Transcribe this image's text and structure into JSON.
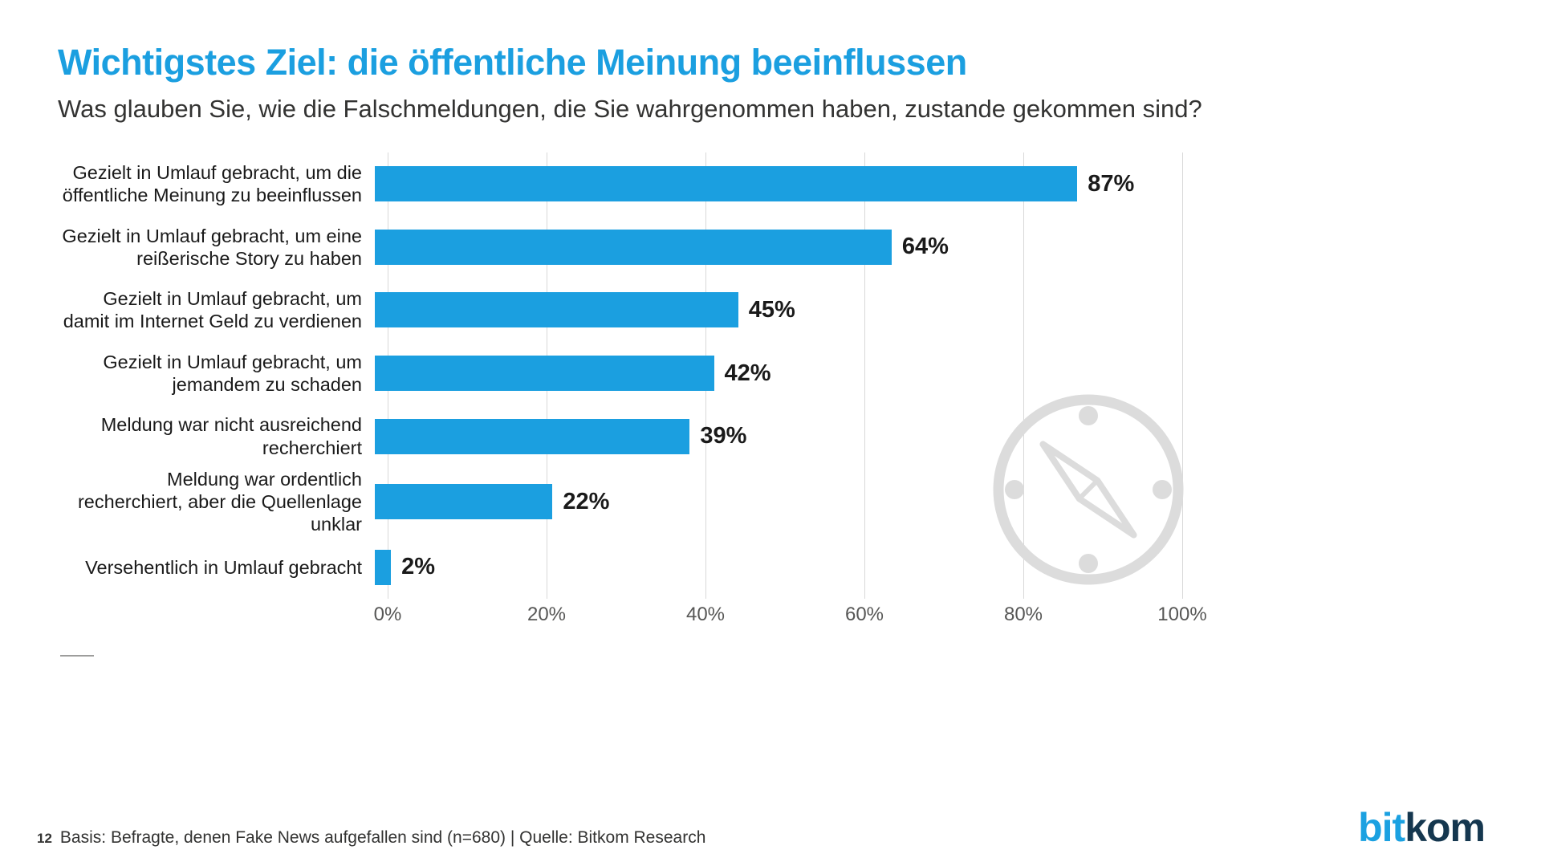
{
  "header": {
    "title": "Wichtigstes Ziel: die öffentliche Meinung beeinflussen",
    "subtitle": "Was glauben Sie, wie die Falschmeldungen, die Sie wahrgenommen haben, zustande gekommen sind?"
  },
  "chart_data": {
    "type": "bar",
    "orientation": "horizontal",
    "categories": [
      "Gezielt in Umlauf gebracht, um die öffentliche Meinung zu beeinflussen",
      "Gezielt in Umlauf gebracht, um eine reißerische Story zu haben",
      "Gezielt in Umlauf gebracht, um damit im Internet Geld zu verdienen",
      "Gezielt in Umlauf gebracht, um jemandem zu schaden",
      "Meldung war nicht ausreichend recherchiert",
      "Meldung war ordentlich recherchiert, aber die Quellenlage unklar",
      "Versehentlich in Umlauf gebracht"
    ],
    "values": [
      87,
      64,
      45,
      42,
      39,
      22,
      2
    ],
    "value_labels": [
      "87%",
      "64%",
      "45%",
      "42%",
      "39%",
      "22%",
      "2%"
    ],
    "xlim": [
      0,
      100
    ],
    "x_ticks": [
      "0%",
      "20%",
      "40%",
      "60%",
      "80%",
      "100%"
    ],
    "x_tick_values": [
      0,
      20,
      40,
      60,
      80,
      100
    ],
    "grid": true,
    "legend": "none",
    "bar_color": "#1b9fe0",
    "gridline_color": "#d9d9d9",
    "title": "Wichtigstes Ziel: die öffentliche Meinung beeinflussen",
    "xlabel": "",
    "ylabel": ""
  },
  "footer": {
    "page_number": "12",
    "source": "Basis: Befragte, denen Fake News aufgefallen sind (n=680) | Quelle: Bitkom Research"
  },
  "logo": {
    "part1": "bit",
    "part2": "kom"
  },
  "colors": {
    "accent_blue": "#1b9fe0",
    "logo_dark": "#15374f",
    "watermark_gray": "#dcdcdc",
    "text_dark": "#1a1a1a",
    "axis_gray": "#575756"
  }
}
